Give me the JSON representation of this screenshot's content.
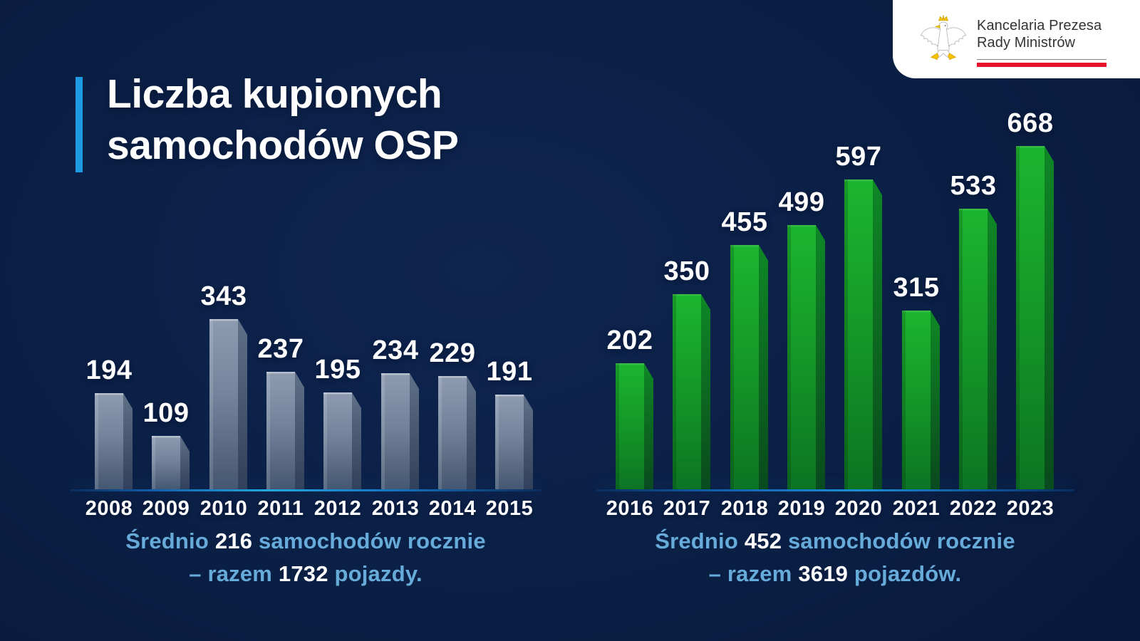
{
  "logo": {
    "line1": "Kancelaria Prezesa",
    "line2": "Rady Ministrów",
    "red_color": "#e8112d",
    "eagle": "polish-eagle"
  },
  "title": {
    "line1": "Liczba kupionych",
    "line2": "samochodów OSP",
    "accent_color": "#1c9be3"
  },
  "chart_data": [
    {
      "id": "osp-2008-2015",
      "type": "bar",
      "categories": [
        "2008",
        "2009",
        "2010",
        "2011",
        "2012",
        "2013",
        "2014",
        "2015"
      ],
      "values": [
        194,
        109,
        343,
        237,
        195,
        234,
        229,
        191
      ],
      "data_labels": true,
      "bar_colors": {
        "main_top": "#8e9cb1",
        "main_bottom": "#46566f",
        "side_top": "#5f7089",
        "side_bottom": "#323f58"
      },
      "axes": {
        "x_ticks_visible": true,
        "y_axis_visible": false,
        "grid": false,
        "baseline_color": "#21a7e0"
      },
      "caption": {
        "prefix": "Średnio ",
        "avg": "216",
        "rest": " samochodów rocznie",
        "line2_prefix": "– razem ",
        "total": "1732",
        "suffix": " pojazdy."
      }
    },
    {
      "id": "osp-2016-2023",
      "type": "bar",
      "categories": [
        "2016",
        "2017",
        "2018",
        "2019",
        "2020",
        "2021",
        "2022",
        "2023"
      ],
      "values": [
        202,
        350,
        455,
        499,
        597,
        315,
        533,
        668
      ],
      "data_labels": true,
      "bar_colors": {
        "main_top": "#1db52f",
        "main_bottom": "#0d7421",
        "side_top": "#0f8726",
        "side_bottom": "#0a4a1c"
      },
      "axes": {
        "x_ticks_visible": true,
        "y_axis_visible": false,
        "grid": false,
        "baseline_color": "#1b8fd4"
      },
      "caption": {
        "prefix": "Średnio ",
        "avg": "452",
        "rest": " samochodów rocznie",
        "line2_prefix": "– razem ",
        "total": "3619",
        "suffix": " pojazdów."
      }
    }
  ]
}
